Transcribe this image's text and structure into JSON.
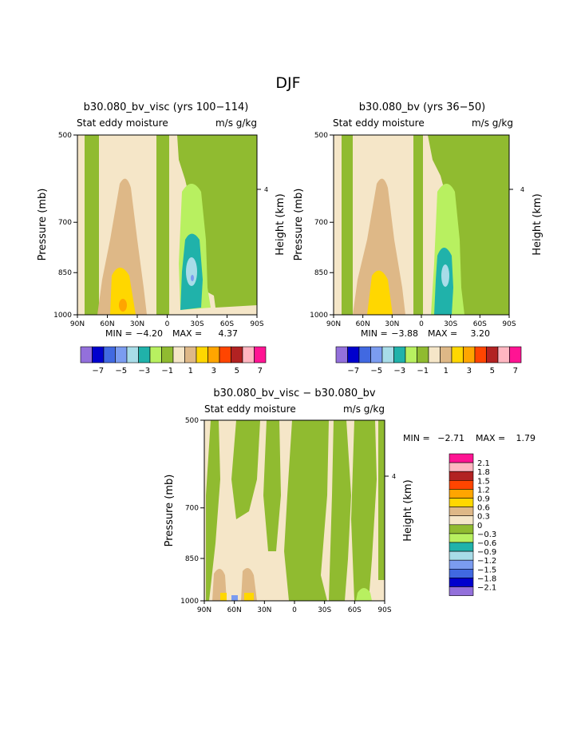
{
  "page_title": "DJF",
  "colors": {
    "m7": "#9370db",
    "m6": "#0000cd",
    "m5": "#4169e1",
    "m4": "#7b9cf0",
    "m3": "#a8dce8",
    "m2": "#20b2aa",
    "m1": "#b8f060",
    "m0": "#90bb30",
    "p0": "#f5e6c8",
    "p1": "#deb887",
    "p2": "#ffd700",
    "p3": "#ffa500",
    "p4": "#ff4500",
    "p5": "#b22222",
    "p6": "#ffb6c1",
    "p7": "#ff1493"
  },
  "chart_data": [
    {
      "id": "panel1",
      "type": "contour",
      "title": "b30.080_bv_visc (yrs 100−114)",
      "subtitle_left": "Stat eddy moisture",
      "subtitle_right": "m/s g/kg",
      "xlabel": "",
      "ylabel": "Pressure (mb)",
      "ylabel_right": "Height (km)",
      "x_ticks": [
        "90N",
        "60N",
        "30N",
        "0",
        "30S",
        "60S",
        "90S"
      ],
      "y_ticks": [
        "500",
        "700",
        "850",
        "1000"
      ],
      "y_ticks_right": [
        "4"
      ],
      "min_label": "MIN =",
      "min": "−4.20",
      "max_label": "MAX =",
      "max": "4.37",
      "legend_labels": [
        "−7",
        "−5",
        "−3",
        "−1",
        "1",
        "3",
        "5",
        "7"
      ]
    },
    {
      "id": "panel2",
      "type": "contour",
      "title": "b30.080_bv (yrs 36−50)",
      "subtitle_left": "Stat eddy moisture",
      "subtitle_right": "m/s g/kg",
      "xlabel": "",
      "ylabel": "Pressure (mb)",
      "ylabel_right": "Height (km)",
      "x_ticks": [
        "90N",
        "60N",
        "30N",
        "0",
        "30S",
        "60S",
        "90S"
      ],
      "y_ticks": [
        "500",
        "700",
        "850",
        "1000"
      ],
      "y_ticks_right": [
        "4"
      ],
      "min_label": "MIN =",
      "min": "−3.88",
      "max_label": "MAX =",
      "max": "3.20",
      "legend_labels": [
        "−7",
        "−5",
        "−3",
        "−1",
        "1",
        "3",
        "5",
        "7"
      ]
    },
    {
      "id": "panel3",
      "type": "contour",
      "title": "b30.080_bv_visc − b30.080_bv",
      "subtitle_left": "Stat eddy moisture",
      "subtitle_right": "m/s g/kg",
      "xlabel": "",
      "ylabel": "Pressure (mb)",
      "ylabel_right": "Height (km)",
      "x_ticks": [
        "90N",
        "60N",
        "30N",
        "0",
        "30S",
        "60S",
        "90S"
      ],
      "y_ticks": [
        "500",
        "700",
        "850",
        "1000"
      ],
      "y_ticks_right": [
        "4"
      ],
      "min_label": "MIN =",
      "min": "−2.71",
      "max_label": "MAX =",
      "max": "1.79",
      "legend_labels": [
        "2.1",
        "1.8",
        "1.5",
        "1.2",
        "0.9",
        "0.6",
        "0.3",
        "0",
        "−0.3",
        "−0.6",
        "−0.9",
        "−1.2",
        "−1.5",
        "−1.8",
        "−2.1"
      ]
    }
  ]
}
